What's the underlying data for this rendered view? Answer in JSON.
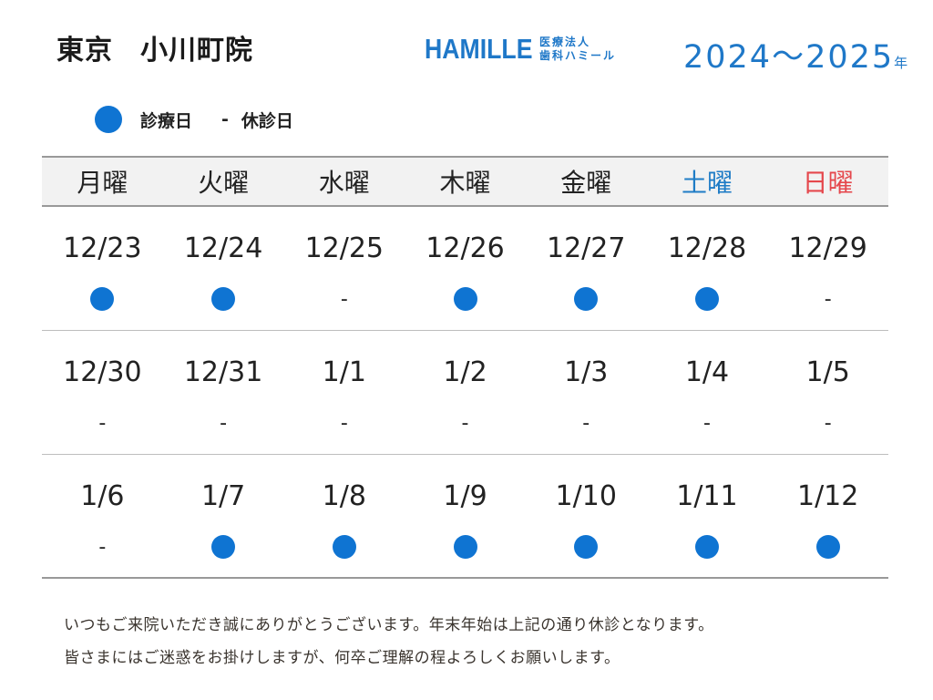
{
  "header": {
    "clinic_city": "東京",
    "clinic_branch": "小川町院",
    "logo_brand": "HAMILLE",
    "logo_line1": "医療法人",
    "logo_line2": "歯科ハミール",
    "year_range": "2024～2025",
    "year_unit": "年"
  },
  "legend": {
    "open_label": "診療日",
    "closed_symbol": "-",
    "closed_label": "休診日"
  },
  "colors": {
    "accent_blue": "#1f78c8",
    "open_dot": "#0f74d2",
    "saturday": "#1f7cc6",
    "sunday": "#e5484d"
  },
  "weekdays": [
    "月曜",
    "火曜",
    "水曜",
    "木曜",
    "金曜",
    "土曜",
    "日曜"
  ],
  "weeks": [
    {
      "days": [
        {
          "date": "12/23",
          "open": true
        },
        {
          "date": "12/24",
          "open": true
        },
        {
          "date": "12/25",
          "open": false
        },
        {
          "date": "12/26",
          "open": true
        },
        {
          "date": "12/27",
          "open": true
        },
        {
          "date": "12/28",
          "open": true
        },
        {
          "date": "12/29",
          "open": false
        }
      ]
    },
    {
      "days": [
        {
          "date": "12/30",
          "open": false
        },
        {
          "date": "12/31",
          "open": false
        },
        {
          "date": "1/1",
          "open": false
        },
        {
          "date": "1/2",
          "open": false
        },
        {
          "date": "1/3",
          "open": false
        },
        {
          "date": "1/4",
          "open": false
        },
        {
          "date": "1/5",
          "open": false
        }
      ]
    },
    {
      "days": [
        {
          "date": "1/6",
          "open": false
        },
        {
          "date": "1/7",
          "open": true
        },
        {
          "date": "1/8",
          "open": true
        },
        {
          "date": "1/9",
          "open": true
        },
        {
          "date": "1/10",
          "open": true
        },
        {
          "date": "1/11",
          "open": true
        },
        {
          "date": "1/12",
          "open": true
        }
      ]
    }
  ],
  "closed_mark": "-",
  "footer": {
    "line1": "いつもご来院いただき誠にありがとうございます。年末年始は上記の通り休診となります。",
    "line2": "皆さまにはご迷惑をお掛けしますが、何卒ご理解の程よろしくお願いします。"
  }
}
